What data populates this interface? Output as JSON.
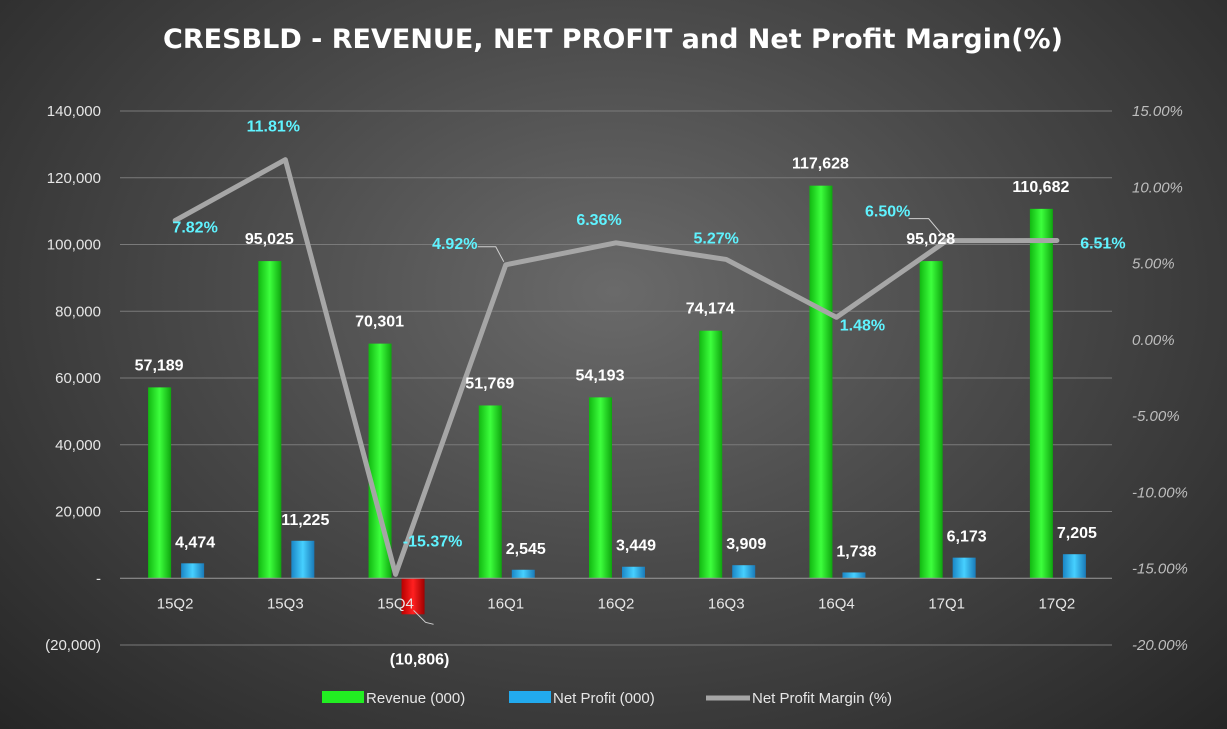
{
  "chart_data": {
    "type": "bar",
    "title": "CRESBLD - REVENUE, NET PROFIT and Net Profit Margin(%)",
    "categories": [
      "15Q2",
      "15Q3",
      "15Q4",
      "16Q1",
      "16Q2",
      "16Q3",
      "16Q4",
      "17Q1",
      "17Q2"
    ],
    "series": [
      {
        "name": "Revenue (000)",
        "kind": "bar",
        "axis": "left",
        "color": "#22ee22",
        "negative_color": "#ee1111",
        "values": [
          57189,
          95025,
          70301,
          51769,
          54193,
          74174,
          117628,
          95028,
          110682
        ],
        "labels": [
          "57,189",
          "95,025",
          "70,301",
          "51,769",
          "54,193",
          "74,174",
          "117,628",
          "95,028",
          "110,682"
        ]
      },
      {
        "name": "Net Profit  (000)",
        "kind": "bar",
        "axis": "left",
        "color": "#22aaee",
        "negative_color": "#ee1111",
        "values": [
          4474,
          11225,
          -10806,
          2545,
          3449,
          3909,
          1738,
          6173,
          7205
        ],
        "labels": [
          "4,474",
          "11,225",
          "(10,806)",
          "2,545",
          "3,449",
          "3,909",
          "1,738",
          "6,173",
          "7,205"
        ]
      },
      {
        "name": "Net Profit Margin (%)",
        "kind": "line",
        "axis": "right",
        "color": "#a6a6a6",
        "values": [
          7.82,
          11.81,
          -15.37,
          4.92,
          6.36,
          5.27,
          1.48,
          6.5,
          6.51
        ],
        "labels": [
          "7.82%",
          "11.81%",
          "-15.37%",
          "4.92%",
          "6.36%",
          "5.27%",
          "1.48%",
          "6.50%",
          "6.51%"
        ]
      }
    ],
    "y_left": {
      "range": [
        -20000,
        140000
      ],
      "ticks": [
        140000,
        120000,
        100000,
        80000,
        60000,
        40000,
        20000,
        0,
        -20000
      ],
      "tick_labels": [
        "140,000",
        "120,000",
        "100,000",
        "80,000",
        "60,000",
        "40,000",
        "20,000",
        "-",
        "(20,000)"
      ]
    },
    "y_right": {
      "range": [
        -20,
        15
      ],
      "ticks": [
        15,
        10,
        5,
        0,
        -5,
        -10,
        -15,
        -20
      ],
      "tick_labels": [
        "15.00%",
        "10.00%",
        "5.00%",
        "0.00%",
        "-5.00%",
        "-10.00%",
        "-15.00%",
        "-20.00%"
      ]
    },
    "grid": true,
    "legend_position": "bottom"
  }
}
